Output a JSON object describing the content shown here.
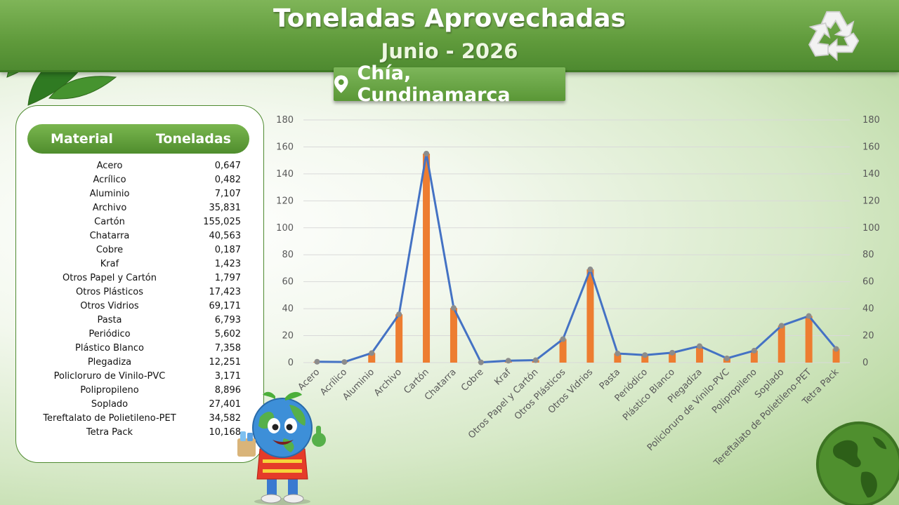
{
  "header": {
    "title": "Toneladas Aprovechadas",
    "subtitle": "Junio - 2026",
    "location": "Chía, Cundinamarca"
  },
  "table": {
    "col_material": "Material",
    "col_toneladas": "Toneladas",
    "rows": [
      {
        "material": "Acero",
        "toneladas": "0,647"
      },
      {
        "material": "Acrílico",
        "toneladas": "0,482"
      },
      {
        "material": "Aluminio",
        "toneladas": "7,107"
      },
      {
        "material": "Archivo",
        "toneladas": "35,831"
      },
      {
        "material": "Cartón",
        "toneladas": "155,025"
      },
      {
        "material": "Chatarra",
        "toneladas": "40,563"
      },
      {
        "material": "Cobre",
        "toneladas": "0,187"
      },
      {
        "material": "Kraf",
        "toneladas": "1,423"
      },
      {
        "material": "Otros Papel y Cartón",
        "toneladas": "1,797"
      },
      {
        "material": "Otros Plásticos",
        "toneladas": "17,423"
      },
      {
        "material": "Otros Vidrios",
        "toneladas": "69,171"
      },
      {
        "material": "Pasta",
        "toneladas": "6,793"
      },
      {
        "material": "Periódico",
        "toneladas": "5,602"
      },
      {
        "material": "Plástico Blanco",
        "toneladas": "7,358"
      },
      {
        "material": "Plegadiza",
        "toneladas": "12,251"
      },
      {
        "material": "Policloruro de Vinilo-PVC",
        "toneladas": "3,171"
      },
      {
        "material": "Polipropileno",
        "toneladas": "8,896"
      },
      {
        "material": "Soplado",
        "toneladas": "27,401"
      },
      {
        "material": "Tereftalato de Polietileno-PET",
        "toneladas": "34,582"
      },
      {
        "material": "Tetra Pack",
        "toneladas": "10,168"
      }
    ]
  },
  "chart_data": {
    "type": "bar",
    "title": "",
    "xlabel": "",
    "ylabel": "",
    "ylim": [
      0,
      180
    ],
    "y_ticks": [
      "0",
      "20",
      "40",
      "60",
      "80",
      "100",
      "120",
      "140",
      "160",
      "180"
    ],
    "secondary_ylim": [
      0,
      180
    ],
    "grid": true,
    "categories": [
      "Acero",
      "Acrílico",
      "Aluminio",
      "Archivo",
      "Cartón",
      "Chatarra",
      "Cobre",
      "Kraf",
      "Otros Papel y Cartón",
      "Otros Plásticos",
      "Otros Vidrios",
      "Pasta",
      "Periódico",
      "Plástico Blanco",
      "Plegadiza",
      "Policloruro de Vinilo-PVC",
      "Polipropileno",
      "Soplado",
      "Tereftalato de Polietileno-PET",
      "Tetra Pack"
    ],
    "series": [
      {
        "type": "bar",
        "axis": "primary",
        "color": "#ed7d31",
        "values": [
          0.647,
          0.482,
          7.107,
          35.831,
          155.025,
          40.563,
          0.187,
          1.423,
          1.797,
          17.423,
          69.171,
          6.793,
          5.602,
          7.358,
          12.251,
          3.171,
          8.896,
          27.401,
          34.582,
          10.168
        ]
      },
      {
        "type": "line",
        "axis": "secondary",
        "color": "#4472c4",
        "marker_color": "#8c8c8c",
        "values": [
          0.647,
          0.482,
          7.107,
          35.831,
          155.025,
          40.563,
          0.187,
          1.423,
          1.797,
          17.423,
          69.171,
          6.793,
          5.602,
          7.358,
          12.251,
          3.171,
          8.896,
          27.401,
          34.582,
          10.168
        ]
      }
    ]
  },
  "colors": {
    "banner_green": "#5f9a3b",
    "accent_green": "#4e8a30",
    "bar_orange": "#ed7d31",
    "line_blue": "#4472c4"
  },
  "icons": {
    "location": "map-pin-icon",
    "recycle": "recycle-icon",
    "leaves": "tropical-leaves",
    "mascot": "earth-mascot",
    "globe": "globe-icon"
  }
}
